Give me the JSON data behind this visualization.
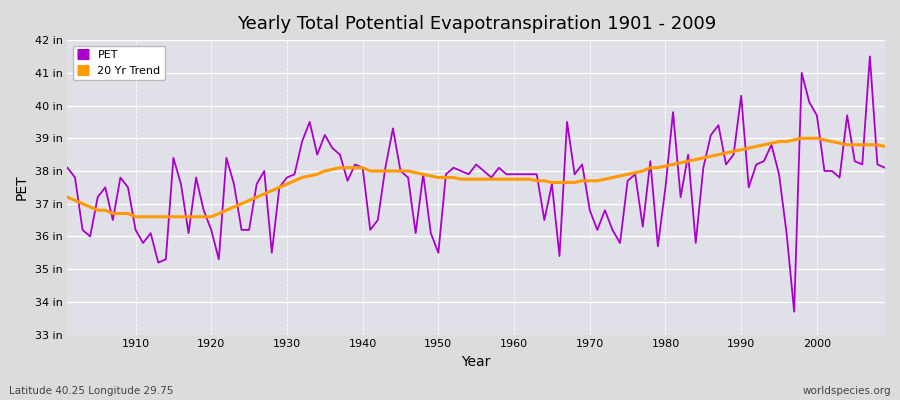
{
  "title": "Yearly Total Potential Evapotranspiration 1901 - 2009",
  "xlabel": "Year",
  "ylabel": "PET",
  "pet_color": "#AA00CC",
  "trend_color": "#FF9900",
  "background_color": "#DCDCDC",
  "plot_bg_color": "#E0E0E8",
  "ylim": [
    33,
    42
  ],
  "ytick_values": [
    33,
    34,
    35,
    36,
    37,
    38,
    39,
    40,
    41,
    42
  ],
  "xlim": [
    1901,
    2009
  ],
  "pet_years": [
    1901,
    1902,
    1903,
    1904,
    1905,
    1906,
    1907,
    1908,
    1909,
    1910,
    1911,
    1912,
    1913,
    1914,
    1915,
    1916,
    1917,
    1918,
    1919,
    1920,
    1921,
    1922,
    1923,
    1924,
    1925,
    1926,
    1927,
    1928,
    1929,
    1930,
    1931,
    1932,
    1933,
    1934,
    1935,
    1936,
    1937,
    1938,
    1939,
    1940,
    1941,
    1942,
    1943,
    1944,
    1945,
    1946,
    1947,
    1948,
    1949,
    1950,
    1951,
    1952,
    1953,
    1954,
    1955,
    1956,
    1957,
    1958,
    1959,
    1960,
    1961,
    1962,
    1963,
    1964,
    1965,
    1966,
    1967,
    1968,
    1969,
    1970,
    1971,
    1972,
    1973,
    1974,
    1975,
    1976,
    1977,
    1978,
    1979,
    1980,
    1981,
    1982,
    1983,
    1984,
    1985,
    1986,
    1987,
    1988,
    1989,
    1990,
    1991,
    1992,
    1993,
    1994,
    1995,
    1996,
    1997,
    1998,
    1999,
    2000,
    2001,
    2002,
    2003,
    2004,
    2005,
    2006,
    2007,
    2008,
    2009
  ],
  "pet_values": [
    38.1,
    37.8,
    36.2,
    36.0,
    37.2,
    37.5,
    36.5,
    37.8,
    37.5,
    36.2,
    35.8,
    36.1,
    35.2,
    35.3,
    38.4,
    37.6,
    36.1,
    37.8,
    36.8,
    36.2,
    35.3,
    38.4,
    37.6,
    36.2,
    36.2,
    37.6,
    38.0,
    35.5,
    37.5,
    37.8,
    37.9,
    38.9,
    39.5,
    38.5,
    39.1,
    38.7,
    38.5,
    37.7,
    38.2,
    38.1,
    36.2,
    36.5,
    38.1,
    39.3,
    38.0,
    37.8,
    36.1,
    37.9,
    36.1,
    35.5,
    37.9,
    38.1,
    38.0,
    37.9,
    38.2,
    38.0,
    37.8,
    38.1,
    37.9,
    37.9,
    37.9,
    37.9,
    37.9,
    36.5,
    37.6,
    35.4,
    39.5,
    37.9,
    38.2,
    36.8,
    36.2,
    36.8,
    36.2,
    35.8,
    37.7,
    37.9,
    36.3,
    38.3,
    35.7,
    37.5,
    39.8,
    37.2,
    38.5,
    35.8,
    38.1,
    39.1,
    39.4,
    38.2,
    38.5,
    40.3,
    37.5,
    38.2,
    38.3,
    38.8,
    37.9,
    36.1,
    33.7,
    41.0,
    40.1,
    39.7,
    38.0,
    38.0,
    37.8,
    39.7,
    38.3,
    38.2,
    41.5,
    38.2,
    38.1
  ],
  "trend_years": [
    1901,
    1902,
    1903,
    1904,
    1905,
    1906,
    1907,
    1908,
    1909,
    1910,
    1911,
    1912,
    1913,
    1914,
    1915,
    1916,
    1917,
    1918,
    1919,
    1920,
    1921,
    1922,
    1923,
    1924,
    1925,
    1926,
    1927,
    1928,
    1929,
    1930,
    1931,
    1932,
    1933,
    1934,
    1935,
    1936,
    1937,
    1938,
    1939,
    1940,
    1941,
    1942,
    1943,
    1944,
    1945,
    1946,
    1947,
    1948,
    1949,
    1950,
    1951,
    1952,
    1953,
    1954,
    1955,
    1956,
    1957,
    1958,
    1959,
    1960,
    1961,
    1962,
    1963,
    1964,
    1965,
    1966,
    1967,
    1968,
    1969,
    1970,
    1971,
    1972,
    1973,
    1974,
    1975,
    1976,
    1977,
    1978,
    1979,
    1980,
    1981,
    1982,
    1983,
    1984,
    1985,
    1986,
    1987,
    1988,
    1989,
    1990,
    1991,
    1992,
    1993,
    1994,
    1995,
    1996,
    1997,
    1998,
    1999,
    2000,
    2001,
    2002,
    2003,
    2004,
    2005,
    2006,
    2007,
    2008,
    2009
  ],
  "trend_values": [
    37.2,
    37.1,
    37.0,
    36.9,
    36.8,
    36.8,
    36.7,
    36.7,
    36.7,
    36.6,
    36.6,
    36.6,
    36.6,
    36.6,
    36.6,
    36.6,
    36.6,
    36.6,
    36.6,
    36.6,
    36.7,
    36.8,
    36.9,
    37.0,
    37.1,
    37.2,
    37.3,
    37.4,
    37.5,
    37.6,
    37.7,
    37.8,
    37.85,
    37.9,
    38.0,
    38.05,
    38.1,
    38.1,
    38.1,
    38.1,
    38.0,
    38.0,
    38.0,
    38.0,
    38.0,
    38.0,
    37.95,
    37.9,
    37.85,
    37.8,
    37.8,
    37.8,
    37.75,
    37.75,
    37.75,
    37.75,
    37.75,
    37.75,
    37.75,
    37.75,
    37.75,
    37.75,
    37.7,
    37.7,
    37.65,
    37.65,
    37.65,
    37.65,
    37.7,
    37.7,
    37.7,
    37.75,
    37.8,
    37.85,
    37.9,
    37.95,
    38.0,
    38.1,
    38.1,
    38.15,
    38.2,
    38.25,
    38.3,
    38.35,
    38.4,
    38.45,
    38.5,
    38.55,
    38.6,
    38.65,
    38.7,
    38.75,
    38.8,
    38.85,
    38.9,
    38.9,
    38.95,
    39.0,
    39.0,
    39.0,
    38.95,
    38.9,
    38.85,
    38.8,
    38.8,
    38.8,
    38.8,
    38.8,
    38.75
  ],
  "footnote_left": "Latitude 40.25 Longitude 29.75",
  "footnote_right": "worldspecies.org"
}
